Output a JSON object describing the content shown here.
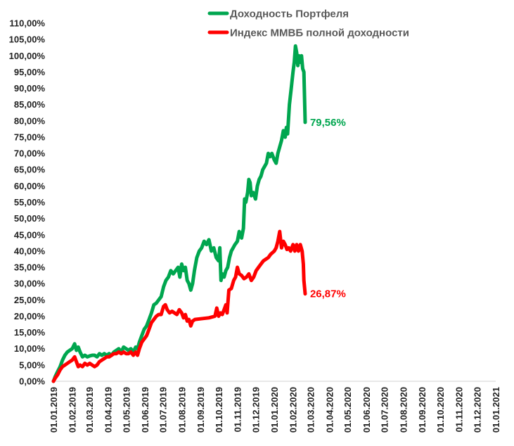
{
  "chart_data": {
    "type": "line",
    "ylim": [
      0,
      110
    ],
    "y_tick_step": 5,
    "y_tick_format": "percent_comma_2",
    "x_ticks": [
      "01.01.2019",
      "01.02.2019",
      "01.03.2019",
      "01.04.2019",
      "01.05.2019",
      "01.06.2019",
      "01.07.2019",
      "01.08.2019",
      "01.09.2019",
      "01.10.2019",
      "01.11.2019",
      "01.12.2019",
      "01.01.2020",
      "01.02.2020",
      "01.03.2020",
      "01.04.2020",
      "01.05.2020",
      "01.06.2020",
      "01.07.2020",
      "01.08.2020",
      "01.09.2020",
      "01.10.2020",
      "01.11.2020",
      "01.12.2020",
      "01.01.2021"
    ],
    "grid": false,
    "legend_position": "top-right",
    "series": [
      {
        "name": "Доходность Портфеля",
        "color": "#00A64F",
        "end_label": "79,56%",
        "points": [
          [
            "2019-01-01",
            0
          ],
          [
            "2019-01-04",
            1.5
          ],
          [
            "2019-01-08",
            3
          ],
          [
            "2019-01-12",
            4.5
          ],
          [
            "2019-01-16",
            6.5
          ],
          [
            "2019-01-20",
            8
          ],
          [
            "2019-01-24",
            9
          ],
          [
            "2019-01-28",
            9.5
          ],
          [
            "2019-02-01",
            10
          ],
          [
            "2019-02-05",
            11.5
          ],
          [
            "2019-02-08",
            9.5
          ],
          [
            "2019-02-11",
            10.5
          ],
          [
            "2019-02-14",
            9
          ],
          [
            "2019-02-18",
            7.5
          ],
          [
            "2019-02-22",
            8
          ],
          [
            "2019-02-26",
            7.5
          ],
          [
            "2019-03-02",
            7.8
          ],
          [
            "2019-03-06",
            8
          ],
          [
            "2019-03-10",
            8
          ],
          [
            "2019-03-14",
            7.5
          ],
          [
            "2019-03-18",
            8.5
          ],
          [
            "2019-03-22",
            8
          ],
          [
            "2019-03-26",
            8.5
          ],
          [
            "2019-03-30",
            8
          ],
          [
            "2019-04-03",
            8.5
          ],
          [
            "2019-04-07",
            8
          ],
          [
            "2019-04-11",
            9
          ],
          [
            "2019-04-15",
            9.5
          ],
          [
            "2019-04-19",
            10
          ],
          [
            "2019-04-23",
            9
          ],
          [
            "2019-04-27",
            10.5
          ],
          [
            "2019-05-01",
            10
          ],
          [
            "2019-05-05",
            9.5
          ],
          [
            "2019-05-09",
            10
          ],
          [
            "2019-05-13",
            9
          ],
          [
            "2019-05-17",
            10.5
          ],
          [
            "2019-05-20",
            10
          ],
          [
            "2019-05-23",
            12
          ],
          [
            "2019-05-27",
            14
          ],
          [
            "2019-05-31",
            16
          ],
          [
            "2019-06-04",
            17
          ],
          [
            "2019-06-08",
            19
          ],
          [
            "2019-06-12",
            21
          ],
          [
            "2019-06-16",
            23.5
          ],
          [
            "2019-06-20",
            24
          ],
          [
            "2019-06-24",
            25
          ],
          [
            "2019-06-28",
            26
          ],
          [
            "2019-07-02",
            29
          ],
          [
            "2019-07-06",
            31
          ],
          [
            "2019-07-10",
            32
          ],
          [
            "2019-07-14",
            34
          ],
          [
            "2019-07-18",
            33
          ],
          [
            "2019-07-22",
            34
          ],
          [
            "2019-07-26",
            35
          ],
          [
            "2019-07-29",
            32
          ],
          [
            "2019-08-01",
            36
          ],
          [
            "2019-08-04",
            34
          ],
          [
            "2019-08-07",
            35
          ],
          [
            "2019-08-10",
            31
          ],
          [
            "2019-08-13",
            30
          ],
          [
            "2019-08-16",
            28
          ],
          [
            "2019-08-19",
            30
          ],
          [
            "2019-08-22",
            34
          ],
          [
            "2019-08-26",
            38
          ],
          [
            "2019-08-30",
            40
          ],
          [
            "2019-09-03",
            41
          ],
          [
            "2019-09-07",
            43
          ],
          [
            "2019-09-11",
            42
          ],
          [
            "2019-09-15",
            43.5
          ],
          [
            "2019-09-19",
            40
          ],
          [
            "2019-09-23",
            41
          ],
          [
            "2019-09-27",
            38
          ],
          [
            "2019-10-01",
            37
          ],
          [
            "2019-10-03",
            41
          ],
          [
            "2019-10-05",
            31
          ],
          [
            "2019-10-07",
            33
          ],
          [
            "2019-10-10",
            32
          ],
          [
            "2019-10-13",
            34
          ],
          [
            "2019-10-16",
            35
          ],
          [
            "2019-10-19",
            38
          ],
          [
            "2019-10-22",
            40
          ],
          [
            "2019-10-25",
            41
          ],
          [
            "2019-10-28",
            42
          ],
          [
            "2019-11-01",
            43
          ],
          [
            "2019-11-04",
            46
          ],
          [
            "2019-11-08",
            44
          ],
          [
            "2019-11-11",
            47
          ],
          [
            "2019-11-13",
            56
          ],
          [
            "2019-11-15",
            55
          ],
          [
            "2019-11-18",
            58
          ],
          [
            "2019-11-20",
            62
          ],
          [
            "2019-11-22",
            61
          ],
          [
            "2019-11-24",
            57
          ],
          [
            "2019-11-27",
            58
          ],
          [
            "2019-12-01",
            56
          ],
          [
            "2019-12-04",
            60
          ],
          [
            "2019-12-07",
            62
          ],
          [
            "2019-12-10",
            63
          ],
          [
            "2019-12-13",
            65
          ],
          [
            "2019-12-16",
            66
          ],
          [
            "2019-12-19",
            67
          ],
          [
            "2019-12-22",
            70
          ],
          [
            "2019-12-25",
            69
          ],
          [
            "2019-12-28",
            70
          ],
          [
            "2020-01-01",
            68
          ],
          [
            "2020-01-04",
            67
          ],
          [
            "2020-01-07",
            70
          ],
          [
            "2020-01-10",
            72
          ],
          [
            "2020-01-13",
            74
          ],
          [
            "2020-01-16",
            77
          ],
          [
            "2020-01-19",
            75
          ],
          [
            "2020-01-21",
            78
          ],
          [
            "2020-01-23",
            76
          ],
          [
            "2020-01-26",
            85
          ],
          [
            "2020-01-29",
            90
          ],
          [
            "2020-02-01",
            95
          ],
          [
            "2020-02-03",
            98
          ],
          [
            "2020-02-05",
            103
          ],
          [
            "2020-02-07",
            101
          ],
          [
            "2020-02-09",
            97
          ],
          [
            "2020-02-11",
            100
          ],
          [
            "2020-02-13",
            98
          ],
          [
            "2020-02-15",
            100
          ],
          [
            "2020-02-17",
            96
          ],
          [
            "2020-02-19",
            95
          ],
          [
            "2020-02-21",
            79.56
          ]
        ]
      },
      {
        "name": "Индекс ММВБ полной доходности",
        "color": "#FF0000",
        "end_label": "26,87%",
        "points": [
          [
            "2019-01-01",
            0
          ],
          [
            "2019-01-04",
            1
          ],
          [
            "2019-01-08",
            2
          ],
          [
            "2019-01-12",
            3.5
          ],
          [
            "2019-01-16",
            4.5
          ],
          [
            "2019-01-20",
            5
          ],
          [
            "2019-01-24",
            5.5
          ],
          [
            "2019-01-28",
            6
          ],
          [
            "2019-02-01",
            6.5
          ],
          [
            "2019-02-05",
            7.5
          ],
          [
            "2019-02-08",
            6
          ],
          [
            "2019-02-11",
            4.5
          ],
          [
            "2019-02-14",
            5
          ],
          [
            "2019-02-18",
            4.5
          ],
          [
            "2019-02-22",
            5.5
          ],
          [
            "2019-02-26",
            5
          ],
          [
            "2019-03-02",
            5.5
          ],
          [
            "2019-03-06",
            5
          ],
          [
            "2019-03-10",
            4.5
          ],
          [
            "2019-03-14",
            5
          ],
          [
            "2019-03-18",
            6
          ],
          [
            "2019-03-22",
            6.5
          ],
          [
            "2019-03-26",
            7
          ],
          [
            "2019-03-30",
            7.5
          ],
          [
            "2019-04-03",
            7.5
          ],
          [
            "2019-04-07",
            8
          ],
          [
            "2019-04-11",
            8.5
          ],
          [
            "2019-04-15",
            8.5
          ],
          [
            "2019-04-19",
            9
          ],
          [
            "2019-04-23",
            8.5
          ],
          [
            "2019-04-27",
            9
          ],
          [
            "2019-05-01",
            8.5
          ],
          [
            "2019-05-05",
            8.5
          ],
          [
            "2019-05-09",
            9
          ],
          [
            "2019-05-13",
            8
          ],
          [
            "2019-05-17",
            9
          ],
          [
            "2019-05-20",
            8
          ],
          [
            "2019-05-23",
            10
          ],
          [
            "2019-05-27",
            12
          ],
          [
            "2019-05-31",
            13
          ],
          [
            "2019-06-04",
            14
          ],
          [
            "2019-06-08",
            16
          ],
          [
            "2019-06-12",
            18
          ],
          [
            "2019-06-16",
            19
          ],
          [
            "2019-06-20",
            20
          ],
          [
            "2019-06-24",
            20.5
          ],
          [
            "2019-06-28",
            20.5
          ],
          [
            "2019-07-02",
            23
          ],
          [
            "2019-07-05",
            23.5
          ],
          [
            "2019-07-08",
            22
          ],
          [
            "2019-07-12",
            21
          ],
          [
            "2019-07-16",
            21.5
          ],
          [
            "2019-07-20",
            21
          ],
          [
            "2019-07-24",
            20.5
          ],
          [
            "2019-07-28",
            22
          ],
          [
            "2019-08-01",
            21
          ],
          [
            "2019-08-04",
            19.5
          ],
          [
            "2019-08-07",
            20.5
          ],
          [
            "2019-08-10",
            18.5
          ],
          [
            "2019-08-13",
            19
          ],
          [
            "2019-08-16",
            17
          ],
          [
            "2019-08-19",
            18.5
          ],
          [
            "2019-08-23",
            19
          ],
          [
            "2019-09-01",
            19.2
          ],
          [
            "2019-09-15",
            19.5
          ],
          [
            "2019-09-25",
            20
          ],
          [
            "2019-09-28",
            22.5
          ],
          [
            "2019-10-01",
            20
          ],
          [
            "2019-10-04",
            21
          ],
          [
            "2019-10-07",
            20.5
          ],
          [
            "2019-10-10",
            22
          ],
          [
            "2019-10-13",
            23.5
          ],
          [
            "2019-10-15",
            21
          ],
          [
            "2019-10-18",
            28
          ],
          [
            "2019-10-22",
            28.5
          ],
          [
            "2019-10-26",
            31
          ],
          [
            "2019-10-29",
            32
          ],
          [
            "2019-11-01",
            35
          ],
          [
            "2019-11-04",
            33
          ],
          [
            "2019-11-08",
            32.5
          ],
          [
            "2019-11-12",
            31.5
          ],
          [
            "2019-11-16",
            32
          ],
          [
            "2019-11-20",
            33
          ],
          [
            "2019-11-24",
            31
          ],
          [
            "2019-11-28",
            32
          ],
          [
            "2019-12-02",
            34
          ],
          [
            "2019-12-06",
            35
          ],
          [
            "2019-12-10",
            36
          ],
          [
            "2019-12-14",
            37
          ],
          [
            "2019-12-18",
            37.5
          ],
          [
            "2019-12-22",
            38
          ],
          [
            "2019-12-26",
            39
          ],
          [
            "2020-01-01",
            40
          ],
          [
            "2020-01-04",
            41
          ],
          [
            "2020-01-07",
            43
          ],
          [
            "2020-01-10",
            46
          ],
          [
            "2020-01-13",
            41
          ],
          [
            "2020-01-16",
            43
          ],
          [
            "2020-01-19",
            42
          ],
          [
            "2020-01-22",
            40.5
          ],
          [
            "2020-01-25",
            41
          ],
          [
            "2020-01-28",
            40
          ],
          [
            "2020-02-01",
            42
          ],
          [
            "2020-02-04",
            40
          ],
          [
            "2020-02-07",
            42
          ],
          [
            "2020-02-10",
            40
          ],
          [
            "2020-02-13",
            42
          ],
          [
            "2020-02-16",
            40
          ],
          [
            "2020-02-18",
            36
          ],
          [
            "2020-02-19",
            31
          ],
          [
            "2020-02-21",
            26.87
          ]
        ]
      }
    ]
  }
}
